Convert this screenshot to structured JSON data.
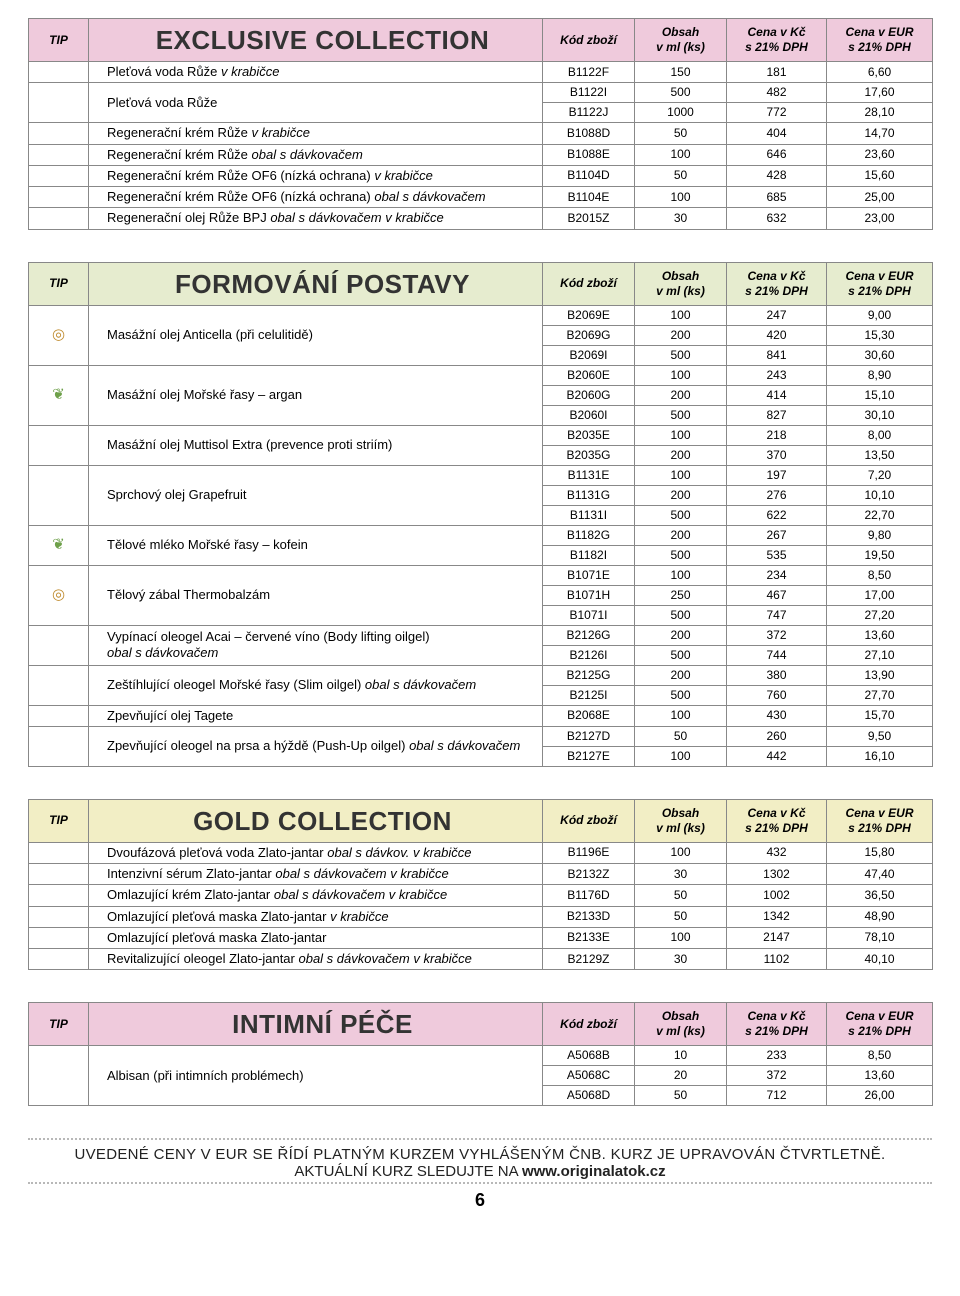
{
  "cols": {
    "tip": "TIP",
    "code": "Kód zboží",
    "ml": "Obsah\nv ml (ks)",
    "kc": "Cena v Kč\ns 21% DPH",
    "eur": "Cena v EUR\ns 21% DPH"
  },
  "hdr_colors": {
    "pink": "#efcadc",
    "green": "#e6eccf",
    "cream": "#f2eec5"
  },
  "tables": [
    {
      "title": "EXCLUSIVE COLLECTION",
      "hdr": "pink",
      "rows": [
        {
          "name": "Pleťová voda Růže <span class='it'>v krabičce</span>",
          "code": "B1122F",
          "ml": "150",
          "kc": "181",
          "eur": "6,60"
        },
        {
          "name": "Pleťová voda Růže",
          "span": 2,
          "code": "B1122I",
          "ml": "500",
          "kc": "482",
          "eur": "17,60"
        },
        {
          "code": "B1122J",
          "ml": "1000",
          "kc": "772",
          "eur": "28,10"
        },
        {
          "name": "Regenerační krém Růže <span class='it'>v krabičce</span>",
          "code": "B1088D",
          "ml": "50",
          "kc": "404",
          "eur": "14,70"
        },
        {
          "name": "Regenerační krém Růže <span class='it'>obal s dávkovačem</span>",
          "code": "B1088E",
          "ml": "100",
          "kc": "646",
          "eur": "23,60"
        },
        {
          "name": "Regenerační krém Růže OF6 (nízká ochrana) <span class='it'>v krabičce</span>",
          "code": "B1104D",
          "ml": "50",
          "kc": "428",
          "eur": "15,60"
        },
        {
          "name": "Regenerační krém Růže OF6 (nízká ochrana) <span class='it'>obal s dávkovačem</span>",
          "code": "B1104E",
          "ml": "100",
          "kc": "685",
          "eur": "25,00"
        },
        {
          "name": "Regenerační olej Růže BPJ <span class='it'>obal s dávkovačem v krabičce</span>",
          "code": "B2015Z",
          "ml": "30",
          "kc": "632",
          "eur": "23,00"
        }
      ]
    },
    {
      "title": "FORMOVÁNÍ POSTAVY",
      "hdr": "green",
      "rows": [
        {
          "ic": "t",
          "name": "Masážní olej Anticella (při celulitidě)",
          "span": 3,
          "code": "B2069E",
          "ml": "100",
          "kc": "247",
          "eur": "9,00"
        },
        {
          "code": "B2069G",
          "ml": "200",
          "kc": "420",
          "eur": "15,30"
        },
        {
          "code": "B2069I",
          "ml": "500",
          "kc": "841",
          "eur": "30,60"
        },
        {
          "ic": "l",
          "name": "Masážní olej Mořské řasy – argan",
          "span": 3,
          "code": "B2060E",
          "ml": "100",
          "kc": "243",
          "eur": "8,90"
        },
        {
          "code": "B2060G",
          "ml": "200",
          "kc": "414",
          "eur": "15,10"
        },
        {
          "code": "B2060I",
          "ml": "500",
          "kc": "827",
          "eur": "30,10"
        },
        {
          "name": "Masážní olej Muttisol Extra (prevence proti striím)",
          "span": 2,
          "code": "B2035E",
          "ml": "100",
          "kc": "218",
          "eur": "8,00"
        },
        {
          "code": "B2035G",
          "ml": "200",
          "kc": "370",
          "eur": "13,50"
        },
        {
          "name": "Sprchový olej Grapefruit",
          "span": 3,
          "code": "B1131E",
          "ml": "100",
          "kc": "197",
          "eur": "7,20"
        },
        {
          "code": "B1131G",
          "ml": "200",
          "kc": "276",
          "eur": "10,10"
        },
        {
          "code": "B1131I",
          "ml": "500",
          "kc": "622",
          "eur": "22,70"
        },
        {
          "ic": "l",
          "name": "Tělové mléko Mořské řasy – kofein",
          "span": 2,
          "code": "B1182G",
          "ml": "200",
          "kc": "267",
          "eur": "9,80"
        },
        {
          "code": "B1182I",
          "ml": "500",
          "kc": "535",
          "eur": "19,50"
        },
        {
          "ic": "t",
          "name": "Tělový zábal Thermobalzám",
          "span": 3,
          "code": "B1071E",
          "ml": "100",
          "kc": "234",
          "eur": "8,50"
        },
        {
          "code": "B1071H",
          "ml": "250",
          "kc": "467",
          "eur": "17,00"
        },
        {
          "code": "B1071I",
          "ml": "500",
          "kc": "747",
          "eur": "27,20"
        },
        {
          "name": "Vypínací oleogel Acai – červené víno (Body lifting oilgel)<br><span class='it'>obal s dávkovačem</span>",
          "span": 2,
          "code": "B2126G",
          "ml": "200",
          "kc": "372",
          "eur": "13,60"
        },
        {
          "code": "B2126I",
          "ml": "500",
          "kc": "744",
          "eur": "27,10"
        },
        {
          "name": "Zeštíhlující oleogel Mořské řasy (Slim oilgel) <span class='it'>obal s dávkovačem</span>",
          "span": 2,
          "code": "B2125G",
          "ml": "200",
          "kc": "380",
          "eur": "13,90"
        },
        {
          "code": "B2125I",
          "ml": "500",
          "kc": "760",
          "eur": "27,70"
        },
        {
          "name": "Zpevňující olej Tagete",
          "code": "B2068E",
          "ml": "100",
          "kc": "430",
          "eur": "15,70"
        },
        {
          "name": "Zpevňující oleogel na prsa a hýždě (Push-Up oilgel) <span class='it'>obal s dávkovačem</span>",
          "span": 2,
          "code": "B2127D",
          "ml": "50",
          "kc": "260",
          "eur": "9,50"
        },
        {
          "code": "B2127E",
          "ml": "100",
          "kc": "442",
          "eur": "16,10"
        }
      ]
    },
    {
      "title": "GOLD COLLECTION",
      "hdr": "cream",
      "rows": [
        {
          "name": "Dvoufázová pleťová voda Zlato-jantar <span class='it'>obal s dávkov. v krabičce</span>",
          "code": "B1196E",
          "ml": "100",
          "kc": "432",
          "eur": "15,80"
        },
        {
          "name": "Intenzivní sérum Zlato-jantar <span class='it'>obal s dávkovačem v krabičce</span>",
          "code": "B2132Z",
          "ml": "30",
          "kc": "1302",
          "eur": "47,40"
        },
        {
          "name": "Omlazující krém Zlato-jantar <span class='it'>obal s dávkovačem v krabičce</span>",
          "code": "B1176D",
          "ml": "50",
          "kc": "1002",
          "eur": "36,50"
        },
        {
          "name": "Omlazující pleťová maska Zlato-jantar <span class='it'>v krabičce</span>",
          "code": "B2133D",
          "ml": "50",
          "kc": "1342",
          "eur": "48,90"
        },
        {
          "name": "Omlazující pleťová maska Zlato-jantar",
          "code": "B2133E",
          "ml": "100",
          "kc": "2147",
          "eur": "78,10"
        },
        {
          "name": "Revitalizující oleogel Zlato-jantar <span class='it'>obal s dávkovačem v krabičce</span>",
          "code": "B2129Z",
          "ml": "30",
          "kc": "1102",
          "eur": "40,10"
        }
      ]
    },
    {
      "title": "INTIMNÍ PÉČE",
      "hdr": "pink",
      "rows": [
        {
          "name": "Albisan (při intimních problémech)",
          "span": 3,
          "code": "A5068B",
          "ml": "10",
          "kc": "233",
          "eur": "8,50"
        },
        {
          "code": "A5068C",
          "ml": "20",
          "kc": "372",
          "eur": "13,60"
        },
        {
          "code": "A5068D",
          "ml": "50",
          "kc": "712",
          "eur": "26,00"
        }
      ]
    }
  ],
  "footer": {
    "l1": "UVEDENÉ CENY V EUR SE ŘÍDÍ PLATNÝM KURZEM VYHLÁŠENÝM ČNB. KURZ JE UPRAVOVÁN ČTVRTLETNĚ.",
    "l2a": "AKTUÁLNÍ KURZ SLEDUJTE NA ",
    "l2b": "www.originalatok.cz",
    "page": "6"
  }
}
